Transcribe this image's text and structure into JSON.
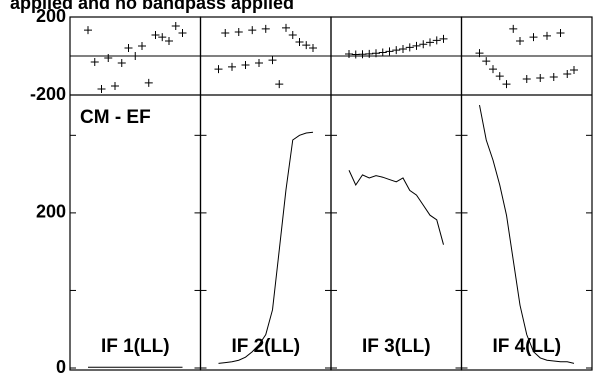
{
  "chart_data": {
    "type": "panels",
    "title": "applied and no bandpass applied",
    "source_label": "CM - EF",
    "phase": {
      "ylim": [
        -200,
        200
      ],
      "yticks": [
        -200,
        200
      ],
      "zero_line": [
        0
      ]
    },
    "amplitude": {
      "ylim": [
        0,
        352
      ],
      "yticks": [
        0,
        200
      ],
      "minor_yticks": [
        100,
        300
      ]
    },
    "panels": [
      {
        "name": "IF 1(LL)",
        "phase": [
          133,
          -31,
          -169,
          -10,
          -154,
          -36,
          41,
          0,
          51,
          -138,
          108,
          97,
          77,
          154,
          118
        ],
        "amplitude": [
          1,
          1,
          1,
          1,
          1,
          1,
          1,
          1,
          1,
          1,
          1,
          1,
          1,
          1,
          1
        ]
      },
      {
        "name": "IF 2(LL)",
        "phase": [
          -67,
          118,
          -56,
          123,
          -46,
          133,
          -36,
          139,
          -21,
          -144,
          144,
          108,
          72,
          56,
          41
        ],
        "amplitude": [
          6,
          7,
          8,
          10,
          14,
          21,
          30,
          43,
          75,
          152,
          230,
          294,
          300,
          303,
          304
        ]
      },
      {
        "name": "IF 3(LL)",
        "phase": [
          10,
          8,
          9,
          11,
          14,
          18,
          24,
          30,
          36,
          44,
          52,
          60,
          70,
          80,
          88
        ],
        "amplitude": [
          255,
          236,
          249,
          245,
          248,
          246,
          243,
          240,
          245,
          229,
          223,
          210,
          197,
          191,
          159
        ]
      },
      {
        "name": "IF 4(LL)",
        "phase": [
          15,
          -26,
          -67,
          -103,
          -144,
          139,
          77,
          -118,
          97,
          -113,
          103,
          -108,
          118,
          -92,
          -72
        ],
        "amplitude": [
          339,
          294,
          268,
          236,
          197,
          139,
          81,
          43,
          21,
          13,
          10,
          9,
          8,
          8,
          6
        ]
      }
    ]
  }
}
